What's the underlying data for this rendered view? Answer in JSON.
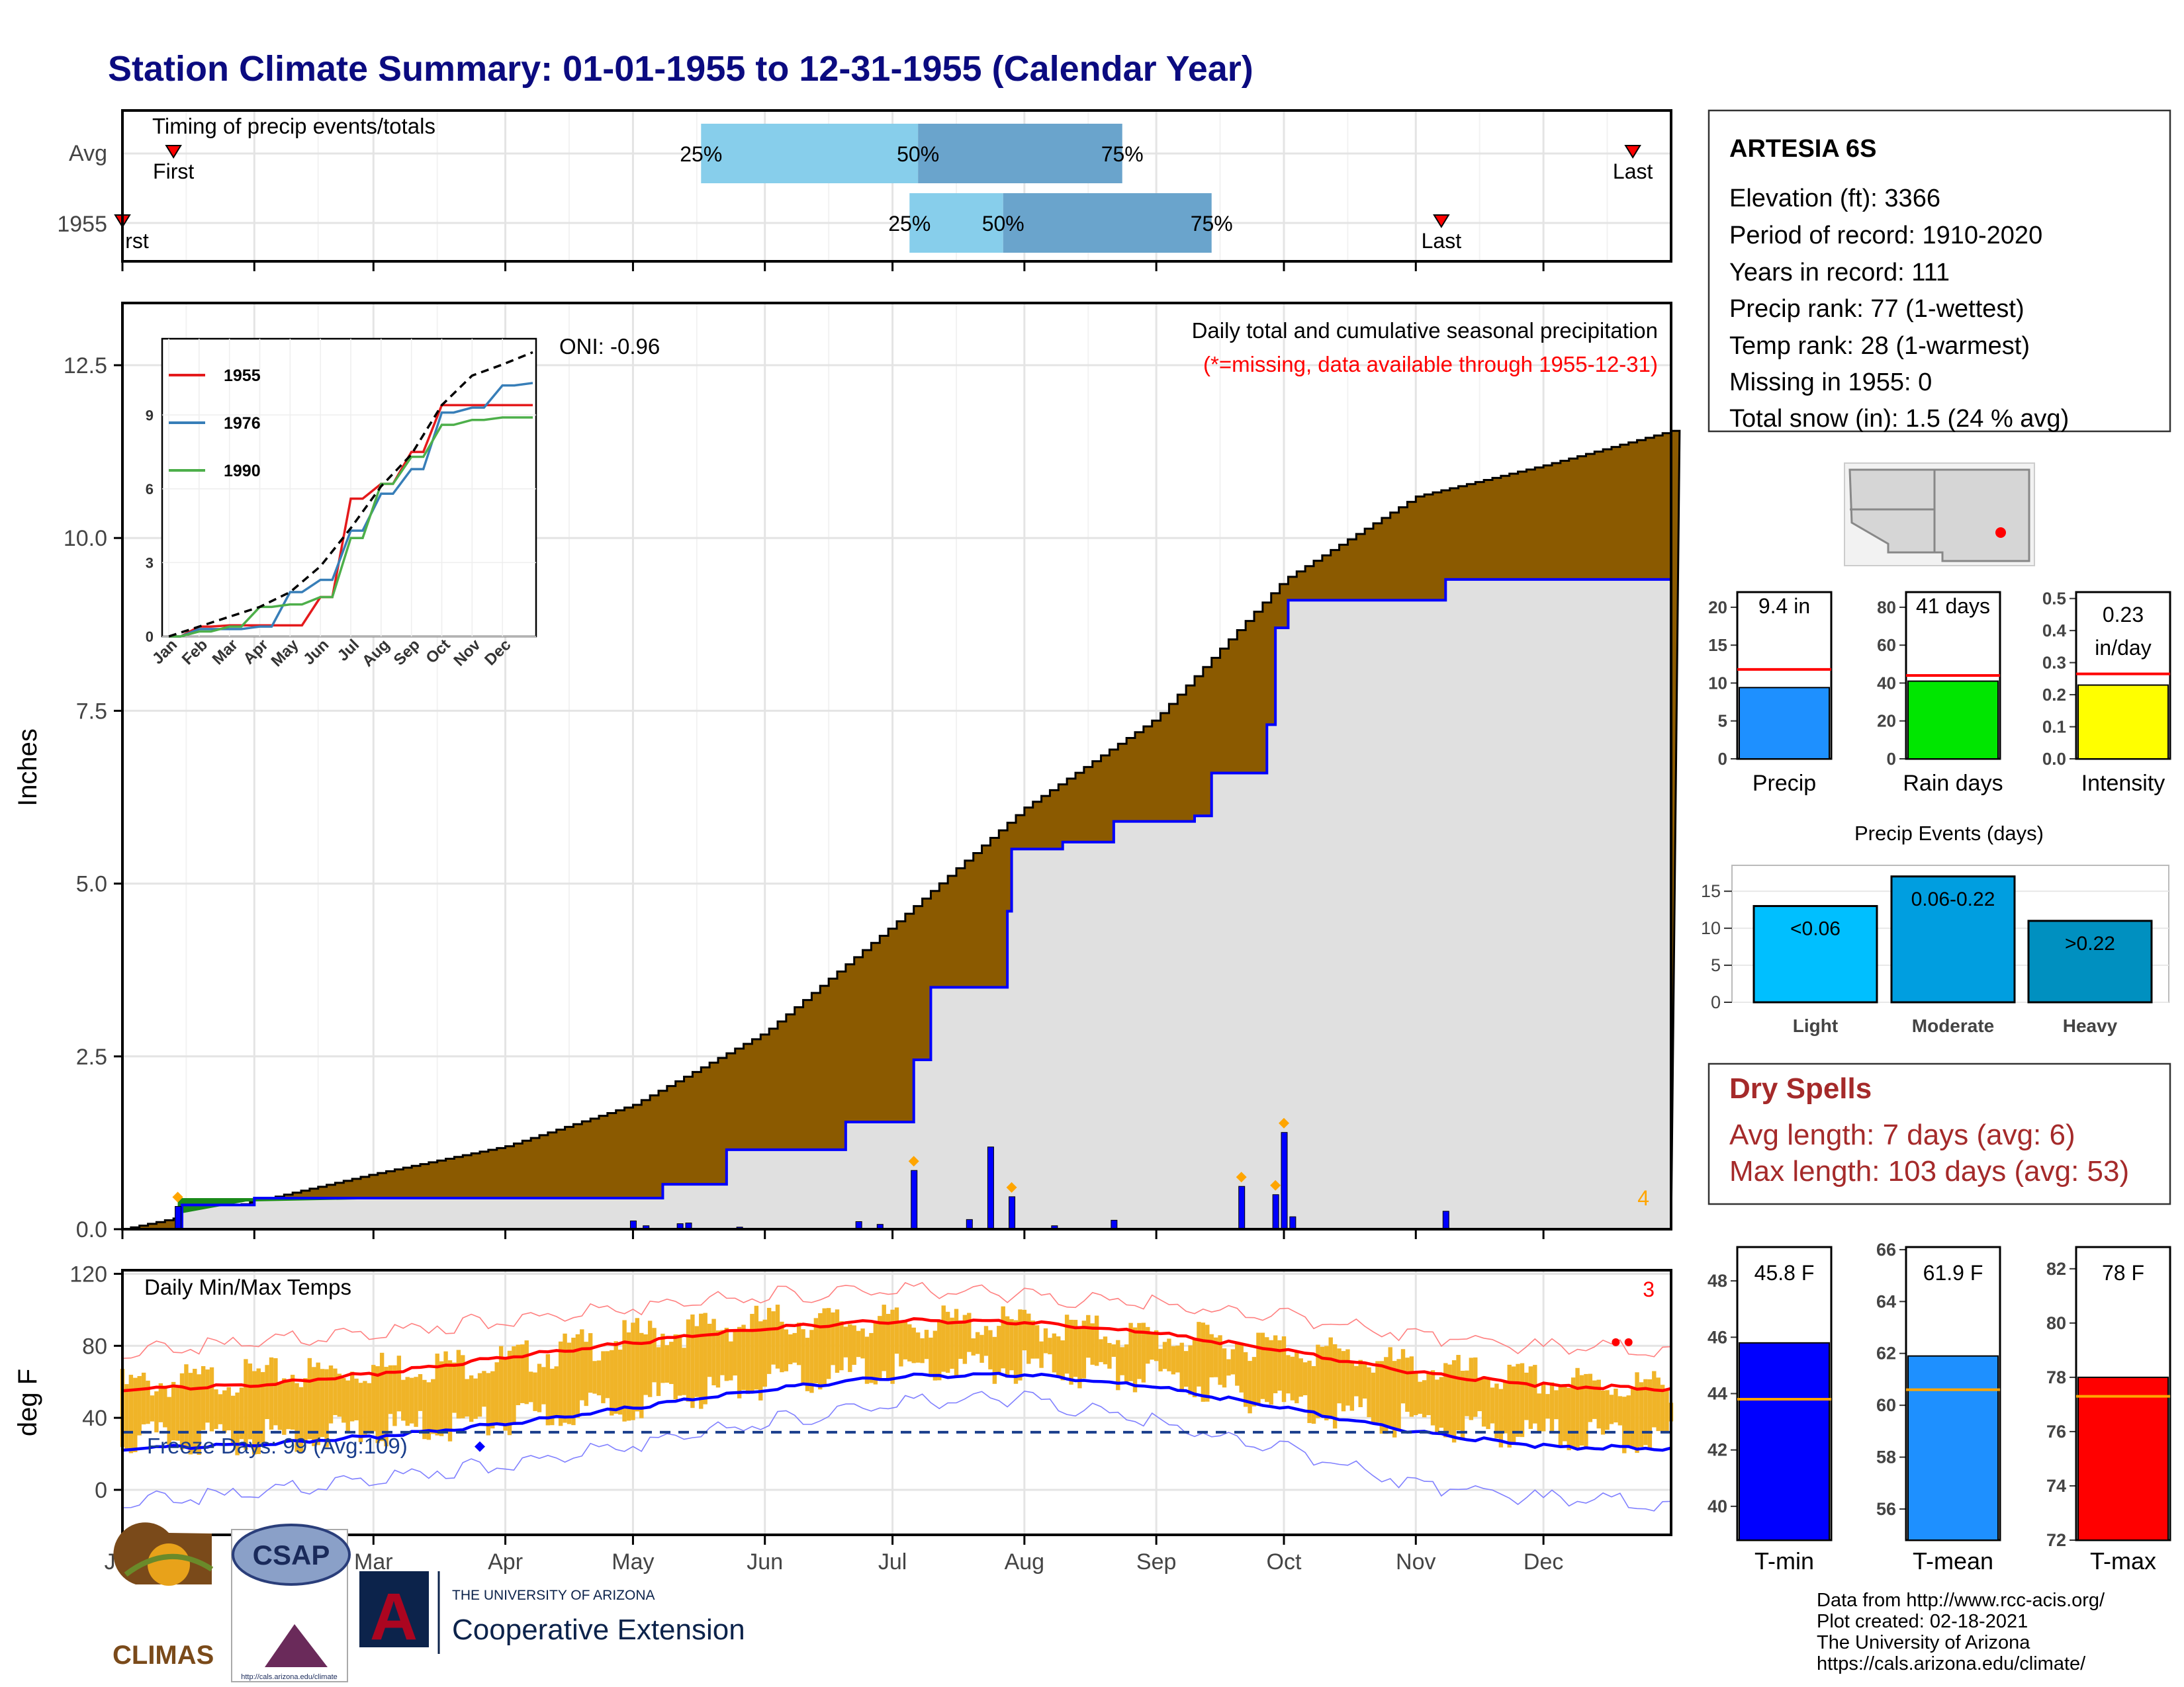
{
  "page_title": "Station Climate Summary: 01-01-1955 to 12-31-1955 (Calendar Year)",
  "colors": {
    "title": "#0b0b80",
    "precip_cum": "#8b5a00",
    "avg_fill": "#e0e0e0",
    "cum_line": "#0000ff",
    "daily_bar": "#0000ff",
    "pct_light": "#87ceeb",
    "pct_dark": "#6aa4cc",
    "tmax": "#ff0000",
    "tmin": "#0000ff",
    "temp_bar": "#f0b428",
    "dry_text": "#a52a2a",
    "marker": "#ff0000",
    "event_marker": "#ffa500"
  },
  "months": [
    "Jan",
    "Feb",
    "Mar",
    "Apr",
    "May",
    "Jun",
    "Jul",
    "Aug",
    "Sep",
    "Oct",
    "Nov",
    "Dec"
  ],
  "timing": {
    "title": "Timing of precip events/totals",
    "row_labels": [
      "Avg",
      "1955"
    ],
    "first_label": "First",
    "last_label": "Last",
    "first_label_clipped": "rst",
    "pct_labels": [
      "25%",
      "50%",
      "75%"
    ],
    "avg": {
      "first": "Jan 13",
      "last": "Dec 22",
      "p25": "May 17",
      "p50": "Jul 7",
      "p75": "Aug 24"
    },
    "year": {
      "first": "Jan 1",
      "last": "Nov 7",
      "p25": "Jul 5",
      "p50": "Jul 27",
      "p75": "Sep 14"
    }
  },
  "precip": {
    "ylabel": "Inches",
    "title": "Daily total and cumulative seasonal precipitation",
    "subtitle": "(*=missing, data available through 1955-12-31)",
    "oni": "ONI: -0.96",
    "count_label": "4",
    "yticks": [
      "0.0",
      "2.5",
      "5.0",
      "7.5",
      "10.0",
      "12.5"
    ]
  },
  "inset": {
    "yticks": [
      "0",
      "3",
      "6",
      "9"
    ],
    "legend": [
      "1955",
      "1976",
      "1990"
    ]
  },
  "temps": {
    "title": "Daily Min/Max Temps",
    "ylabel": "deg F",
    "freeze_label": "Freeze Days: 99 (Avg:109)",
    "count_label": "3",
    "yticks": [
      "0",
      "40",
      "80",
      "120"
    ]
  },
  "station": {
    "name": "ARTESIA 6S",
    "lines": [
      "Elevation (ft): 3366",
      "Period of record: 1910-2020",
      "Years in record: 111",
      "Precip rank: 77 (1-wettest)",
      "Temp rank: 28 (1-warmest)",
      "Missing in 1955: 0",
      "Total snow (in): 1.5 (24 % avg)"
    ]
  },
  "mini_bars": [
    {
      "label": "Precip",
      "value_text": "9.4 in",
      "value": 9.4,
      "avg": 11.8,
      "ymax": 22,
      "ticks": [
        "0",
        "5",
        "10",
        "15",
        "20"
      ],
      "tick_values": [
        0,
        5,
        10,
        15,
        20
      ],
      "color": "#1e90ff"
    },
    {
      "label": "Rain days",
      "value_text": "41 days",
      "value": 41,
      "avg": 44,
      "ymax": 88,
      "ticks": [
        "0",
        "20",
        "40",
        "60",
        "80"
      ],
      "tick_values": [
        0,
        20,
        40,
        60,
        80
      ],
      "color": "#00e600"
    },
    {
      "label": "Intensity",
      "value_text": "0.23 in/day",
      "value_line1": "0.23",
      "value_line2": "in/day",
      "value": 0.23,
      "avg": 0.265,
      "ymax": 0.52,
      "ticks": [
        "0.0",
        "0.1",
        "0.2",
        "0.3",
        "0.4",
        "0.5"
      ],
      "tick_values": [
        0,
        0.1,
        0.2,
        0.3,
        0.4,
        0.5
      ],
      "color": "#ffff00"
    }
  ],
  "events": {
    "title": "Precip Events (days)",
    "yticks": [
      "0",
      "5",
      "10",
      "15"
    ],
    "categories": [
      "Light",
      "Moderate",
      "Heavy"
    ],
    "labels": [
      "<0.06",
      "0.06-0.22",
      ">0.22"
    ],
    "values": [
      13,
      17,
      11
    ],
    "colors": [
      "#00bfff",
      "#009ee0",
      "#0090c0"
    ]
  },
  "dry_spells": {
    "title": "Dry Spells",
    "avg_length": "Avg length: 7 days (avg: 6)",
    "max_length": "Max length: 103 days (avg: 53)"
  },
  "temp_bars": [
    {
      "label": "T-min",
      "value_text": "45.8 F",
      "value": 45.8,
      "avg": 43.8,
      "ymin": 38.8,
      "ymax": 49.2,
      "ticks": [
        "40",
        "42",
        "44",
        "46",
        "48"
      ],
      "tick_values": [
        40,
        42,
        44,
        46,
        48
      ],
      "color": "#0000ff"
    },
    {
      "label": "T-mean",
      "value_text": "61.9 F",
      "value": 61.9,
      "avg": 60.6,
      "ymin": 54.8,
      "ymax": 66.1,
      "ticks": [
        "56",
        "58",
        "60",
        "62",
        "64",
        "66"
      ],
      "tick_values": [
        56,
        58,
        60,
        62,
        64,
        66
      ],
      "color": "#1e90ff"
    },
    {
      "label": "T-max",
      "value_text": "78 F",
      "value": 78,
      "avg": 77.3,
      "ymin": 72,
      "ymax": 82.8,
      "ticks": [
        "72",
        "74",
        "76",
        "78",
        "80",
        "82"
      ],
      "tick_values": [
        72,
        74,
        76,
        78,
        80,
        82
      ],
      "color": "#ff0000"
    }
  ],
  "credits": [
    "Data from http://www.rcc-acis.org/",
    "Plot created: 02-18-2021",
    "The University of Arizona",
    "https://cals.arizona.edu/climate/"
  ],
  "logos": {
    "climas": "CLIMAS",
    "csap": "CSAP",
    "csap_url": "http://cals.arizona.edu/climate",
    "ua_line1": "THE UNIVERSITY OF ARIZONA",
    "ua_line2": "Cooperative Extension",
    "ua_letter": "A"
  },
  "chart_data": {
    "type": "area",
    "title": "Daily total and cumulative seasonal precipitation",
    "ylabel": "Inches",
    "ylim": [
      0,
      12.5
    ],
    "series": [
      {
        "name": "1955",
        "x": [
          "Jan 1",
          "Jan 15",
          "Feb 1",
          "Mar 1",
          "Apr 1",
          "May 1",
          "May 8",
          "May 23",
          "Jun 20",
          "Jul 6",
          "Jul 10",
          "Jul 28",
          "Jul 29",
          "Aug 10",
          "Aug 22",
          "Sep 10",
          "Sep 14",
          "Sep 27",
          "Sep 29",
          "Oct 2",
          "Nov 7",
          "Nov 8",
          "Dec 31"
        ],
        "y": [
          0,
          0.35,
          0.45,
          0.45,
          0.45,
          0.45,
          0.65,
          1.15,
          1.55,
          2.45,
          3.5,
          4.6,
          5.5,
          5.6,
          5.9,
          5.98,
          6.6,
          7.3,
          8.7,
          9.1,
          9.1,
          9.4,
          9.4
        ]
      },
      {
        "name": "Average cumulative",
        "x": [
          "Jan 1",
          "Feb 1",
          "Mar 1",
          "Apr 1",
          "May 1",
          "Jun 1",
          "Jul 1",
          "Aug 1",
          "Sep 1",
          "Oct 1",
          "Nov 1",
          "Dec 1",
          "Dec 31"
        ],
        "y": [
          0,
          0.4,
          0.8,
          1.2,
          1.8,
          2.85,
          4.4,
          6.1,
          7.4,
          9.4,
          10.6,
          11.05,
          11.55
        ]
      }
    ],
    "daily_precip": [
      {
        "date": "Jan 14",
        "value": 0.33
      },
      {
        "date": "May 1",
        "value": 0.12
      },
      {
        "date": "May 4",
        "value": 0.05
      },
      {
        "date": "May 12",
        "value": 0.08
      },
      {
        "date": "May 14",
        "value": 0.09
      },
      {
        "date": "May 26",
        "value": 0.03
      },
      {
        "date": "Jun 23",
        "value": 0.11
      },
      {
        "date": "Jun 28",
        "value": 0.07
      },
      {
        "date": "Jul 6",
        "value": 0.85
      },
      {
        "date": "Jul 19",
        "value": 0.14
      },
      {
        "date": "Jul 24",
        "value": 1.19
      },
      {
        "date": "Jul 29",
        "value": 0.47
      },
      {
        "date": "Aug 8",
        "value": 0.05
      },
      {
        "date": "Aug 22",
        "value": 0.13
      },
      {
        "date": "Sep 21",
        "value": 0.62
      },
      {
        "date": "Sep 29",
        "value": 0.5
      },
      {
        "date": "Oct 1",
        "value": 1.4
      },
      {
        "date": "Oct 3",
        "value": 0.18
      },
      {
        "date": "Nov 8",
        "value": 0.26
      }
    ],
    "inset": {
      "type": "line",
      "ylim": [
        0,
        12
      ],
      "series": [
        {
          "name": "1955",
          "x": [
            0,
            1,
            2,
            3,
            4,
            5,
            6,
            7,
            8,
            9,
            10,
            11,
            12
          ],
          "y": [
            0,
            0.4,
            0.45,
            0.45,
            0.45,
            1.6,
            5.6,
            6.2,
            7.5,
            9.4,
            9.4,
            9.4,
            9.4
          ]
        },
        {
          "name": "1976",
          "x": [
            0,
            1,
            2,
            3,
            4,
            5,
            6,
            7,
            8,
            9,
            10,
            11,
            12
          ],
          "y": [
            0,
            0.3,
            0.3,
            0.4,
            1.8,
            2.3,
            4.3,
            5.8,
            6.8,
            9.1,
            9.3,
            10.2,
            10.3
          ]
        },
        {
          "name": "1990",
          "x": [
            0,
            1,
            2,
            3,
            4,
            5,
            6,
            7,
            8,
            9,
            10,
            11,
            12
          ],
          "y": [
            0,
            0.2,
            0.4,
            1.2,
            1.3,
            1.6,
            4.0,
            6.2,
            7.3,
            8.6,
            8.8,
            8.9,
            8.9
          ]
        },
        {
          "name": "Average",
          "x": [
            0,
            1,
            2,
            3,
            4,
            5,
            6,
            7,
            8,
            9,
            10,
            11,
            12
          ],
          "y": [
            0,
            0.4,
            0.8,
            1.2,
            1.8,
            2.85,
            4.4,
            6.1,
            7.4,
            9.4,
            10.6,
            11.05,
            11.55
          ]
        }
      ]
    },
    "temperature": {
      "type": "line",
      "ylim": [
        -25,
        122
      ],
      "freeze_line": 32,
      "avg_max": {
        "x": [
          0,
          1,
          2,
          3,
          4,
          5,
          6,
          7,
          8,
          9,
          10,
          11,
          12
        ],
        "y": [
          56,
          58,
          65,
          74,
          82,
          90,
          94,
          93,
          87,
          77,
          65,
          58,
          56
        ]
      },
      "avg_min": {
        "x": [
          0,
          1,
          2,
          3,
          4,
          5,
          6,
          7,
          8,
          9,
          10,
          11,
          12
        ],
        "y": [
          23,
          25,
          30,
          37,
          46,
          56,
          63,
          64,
          57,
          45,
          32,
          24,
          23
        ]
      },
      "record_max": {
        "x": [
          0,
          1,
          2,
          3,
          4,
          5,
          6,
          7,
          8,
          9,
          10,
          11,
          12
        ],
        "y": [
          77,
          81,
          88,
          95,
          102,
          108,
          111,
          108,
          103,
          96,
          86,
          79,
          78
        ]
      },
      "record_min": {
        "x": [
          0,
          1,
          2,
          3,
          4,
          5,
          6,
          7,
          8,
          9,
          10,
          11,
          12
        ],
        "y": [
          -6,
          -3,
          7,
          15,
          26,
          38,
          48,
          51,
          37,
          22,
          3,
          -5,
          -8
        ]
      },
      "daily_max": {
        "x": [
          0,
          1,
          2,
          3,
          4,
          5,
          6,
          7,
          8,
          9,
          10,
          11,
          12
        ],
        "y": [
          58,
          63,
          68,
          72,
          86,
          94,
          93,
          92,
          85,
          80,
          68,
          60,
          57
        ]
      },
      "daily_min": {
        "x": [
          0,
          1,
          2,
          3,
          4,
          5,
          6,
          7,
          8,
          9,
          10,
          11,
          12
        ],
        "y": [
          28,
          29,
          33,
          38,
          49,
          60,
          67,
          68,
          63,
          48,
          37,
          31,
          28
        ]
      }
    },
    "events": {
      "type": "bar",
      "categories": [
        "Light",
        "Moderate",
        "Heavy"
      ],
      "values": [
        13,
        17,
        11
      ]
    }
  }
}
